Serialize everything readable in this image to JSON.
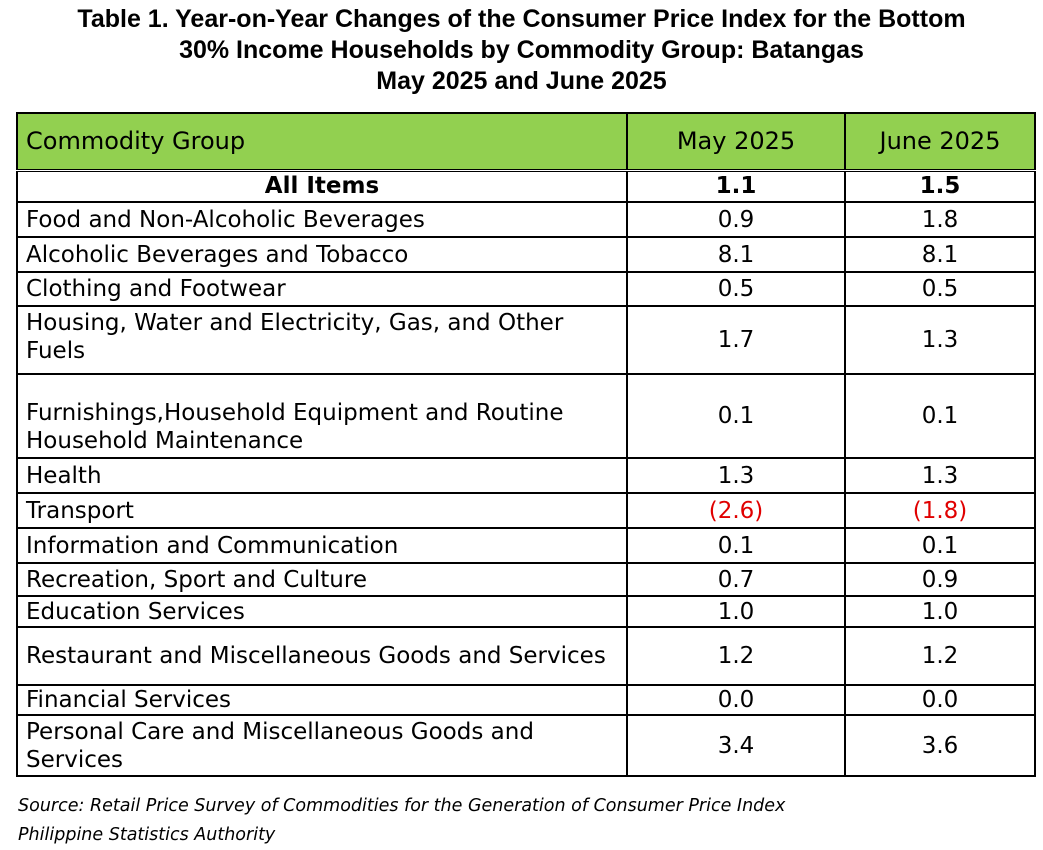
{
  "title": {
    "line1": "Table 1. Year-on-Year Changes of the Consumer Price Index for the Bottom",
    "line2": "30% Income Households by Commodity Group: Batangas",
    "line3": "May 2025 and June 2025"
  },
  "table": {
    "headers": [
      "Commodity Group",
      "May 2025",
      "June 2025"
    ],
    "header_color": "#92d050",
    "negative_color": "#e00000",
    "rows": [
      {
        "label": "All Items",
        "may": "1.1",
        "june": "1.5"
      },
      {
        "label": "Food and Non-Alcoholic Beverages",
        "may": "0.9",
        "june": "1.8"
      },
      {
        "label": "Alcoholic Beverages and Tobacco",
        "may": "8.1",
        "june": "8.1"
      },
      {
        "label": "Clothing and Footwear",
        "may": "0.5",
        "june": "0.5"
      },
      {
        "label": "Housing, Water and Electricity, Gas, and Other Fuels",
        "may": "1.7",
        "june": "1.3"
      },
      {
        "label": "Furnishings,Household Equipment and Routine Household Maintenance",
        "may": "0.1",
        "june": "0.1"
      },
      {
        "label": "Health",
        "may": "1.3",
        "june": "1.3"
      },
      {
        "label": "Transport",
        "may": "(2.6)",
        "june": "(1.8)"
      },
      {
        "label": "Information and Communication",
        "may": "0.1",
        "june": "0.1"
      },
      {
        "label": "Recreation, Sport and Culture",
        "may": "0.7",
        "june": "0.9"
      },
      {
        "label": "Education Services",
        "may": "1.0",
        "june": "1.0"
      },
      {
        "label": "Restaurant and Miscellaneous Goods and Services",
        "may": "1.2",
        "june": "1.2"
      },
      {
        "label": "Financial Services",
        "may": "0.0",
        "june": "0.0"
      },
      {
        "label": "Personal Care and Miscellaneous Goods and Services",
        "may": "3.4",
        "june": "3.6"
      }
    ]
  },
  "source": {
    "line1": "Source: Retail Price Survey of Commodities for the Generation of Consumer Price Index",
    "line2": "Philippine Statistics Authority"
  }
}
